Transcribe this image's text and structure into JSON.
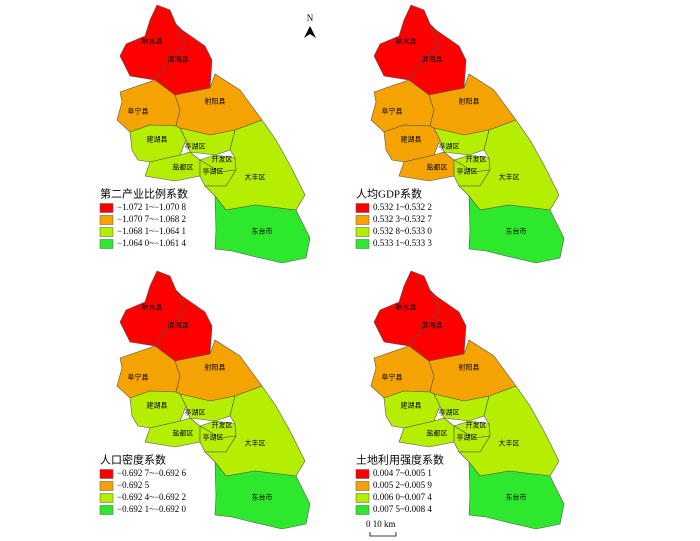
{
  "north_label": "N",
  "scale_label": "0 10 km",
  "region_names": [
    "响水县",
    "滨海县",
    "阜宁县",
    "射阳县",
    "建湖县",
    "亭湖区",
    "盐都区",
    "开发区",
    "亭湖区",
    "大丰区",
    "东台市"
  ],
  "legend_colors": [
    "#ff0000",
    "#f5a300",
    "#b5ee00",
    "#2ee82e"
  ],
  "panels": [
    {
      "legend_title": "第二产业比例系数",
      "legend_labels": [
        "−1.072 1~−1.070 8",
        "−1.070 7~−1.068 2",
        "−1.068 1~−1.064 1",
        "−1.064 0~−1.061 4"
      ],
      "region_colors": [
        "#ff0000",
        "#ff0000",
        "#f5a300",
        "#f5a300",
        "#b5ee00",
        "#b5ee00",
        "#b5ee00",
        "#b5ee00",
        "#b5ee00",
        "#b5ee00",
        "#2ee82e"
      ]
    },
    {
      "legend_title": "人均GDP系数",
      "legend_labels": [
        "0.532 1~0.532 2",
        "0.532 3~0.532 7",
        "0.532 8~0.533 0",
        "0.533 1~0.533 3"
      ],
      "region_colors": [
        "#ff0000",
        "#ff0000",
        "#f5a300",
        "#f5a300",
        "#f5a300",
        "#b5ee00",
        "#f5a300",
        "#b5ee00",
        "#b5ee00",
        "#b5ee00",
        "#2ee82e"
      ]
    },
    {
      "legend_title": "人口密度系数",
      "legend_labels": [
        "−0.692 7~−0.692 6",
        "−0.692 5",
        "−0.692 4~−0.692 2",
        "−0.692 1~−0.692 0"
      ],
      "region_colors": [
        "#ff0000",
        "#ff0000",
        "#f5a300",
        "#f5a300",
        "#b5ee00",
        "#b5ee00",
        "#b5ee00",
        "#b5ee00",
        "#b5ee00",
        "#b5ee00",
        "#2ee82e"
      ]
    },
    {
      "legend_title": "土地利用强度系数",
      "legend_labels": [
        "0.004 7~0.005 1",
        "0.005 2~0.005 9",
        "0.006 0~0.007 4",
        "0.007 5~0.008 4"
      ],
      "region_colors": [
        "#ff0000",
        "#ff0000",
        "#f5a300",
        "#f5a300",
        "#b5ee00",
        "#b5ee00",
        "#b5ee00",
        "#b5ee00",
        "#b5ee00",
        "#b5ee00",
        "#2ee82e"
      ]
    }
  ]
}
